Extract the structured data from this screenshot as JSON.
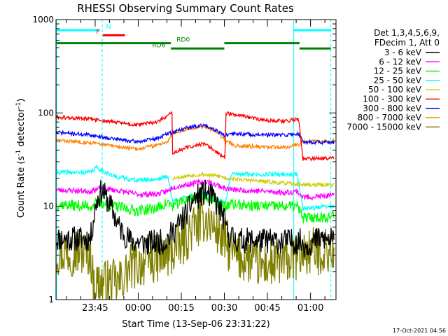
{
  "chart_data": {
    "type": "line",
    "title": "RHESSI Observing Summary Count Rates",
    "xlabel": "Start Time (13-Sep-06 23:31:22)",
    "ylabel_main": "Count Rate (s",
    "ylabel_sup1": "-1",
    "ylabel_mid": " detector",
    "ylabel_sup2": "-1",
    "ylabel_end": ")",
    "yscale": "log",
    "ylim": [
      1,
      1000
    ],
    "xlim_minutes": [
      0,
      97.5
    ],
    "x_tick_labels": [
      {
        "label": "23:45",
        "minute": 13.63
      },
      {
        "label": "00:00",
        "minute": 28.63
      },
      {
        "label": "00:15",
        "minute": 43.63
      },
      {
        "label": "00:30",
        "minute": 58.63
      },
      {
        "label": "00:45",
        "minute": 73.63
      },
      {
        "label": "01:00",
        "minute": 88.63
      }
    ],
    "y_tick_labels": [
      {
        "label": "1",
        "value": 1
      },
      {
        "label": "10",
        "value": 10
      },
      {
        "label": "100",
        "value": 100
      },
      {
        "label": "1000",
        "value": 1000
      }
    ],
    "legend_header": [
      "Det 1,3,4,5,6,9,",
      "FDecim 1, Att 0"
    ],
    "legend_placement": "right",
    "series": [
      {
        "name": "3 - 6 keV",
        "color": "#000000",
        "seed": 11,
        "noise": 0.14,
        "points": [
          [
            0,
            4.5
          ],
          [
            12,
            4.5
          ],
          [
            14,
            11
          ],
          [
            16,
            15
          ],
          [
            19,
            10
          ],
          [
            22,
            6
          ],
          [
            26,
            4.2
          ],
          [
            32,
            4.0
          ],
          [
            38,
            4.2
          ],
          [
            40,
            5
          ],
          [
            42,
            6
          ],
          [
            45,
            8
          ],
          [
            48,
            12
          ],
          [
            52,
            14
          ],
          [
            55,
            12
          ],
          [
            58,
            8
          ],
          [
            60,
            5
          ],
          [
            63,
            4.3
          ],
          [
            70,
            4.3
          ],
          [
            80,
            4.2
          ],
          [
            85,
            4.2
          ],
          [
            87,
            3.8
          ],
          [
            92,
            4.5
          ],
          [
            97,
            4.3
          ]
        ]
      },
      {
        "name": "6 - 12 keV",
        "color": "#ff00ff",
        "seed": 23,
        "noise": 0.03,
        "points": [
          [
            0,
            15
          ],
          [
            12,
            14.5
          ],
          [
            15,
            15.5
          ],
          [
            20,
            15
          ],
          [
            28,
            13.5
          ],
          [
            35,
            13.5
          ],
          [
            39,
            14.5
          ],
          [
            40.5,
            16
          ],
          [
            45,
            17
          ],
          [
            52,
            18.5
          ],
          [
            57,
            16.5
          ],
          [
            59,
            15.5
          ],
          [
            62,
            15
          ],
          [
            72,
            14.5
          ],
          [
            80,
            14
          ],
          [
            84,
            14.5
          ],
          [
            86,
            12.5
          ],
          [
            97,
            13
          ]
        ]
      },
      {
        "name": "12 - 25 keV",
        "color": "#00ff00",
        "seed": 37,
        "noise": 0.06,
        "points": [
          [
            0,
            10.5
          ],
          [
            12,
            10
          ],
          [
            15,
            11
          ],
          [
            20,
            10
          ],
          [
            28,
            9
          ],
          [
            35,
            9.5
          ],
          [
            39,
            11
          ],
          [
            40.5,
            10
          ],
          [
            46,
            12
          ],
          [
            51,
            13.5
          ],
          [
            56,
            11
          ],
          [
            59,
            10
          ],
          [
            61,
            10.5
          ],
          [
            72,
            10
          ],
          [
            84,
            10
          ],
          [
            86,
            7.5
          ],
          [
            97,
            7.8
          ]
        ]
      },
      {
        "name": "25 - 50 keV",
        "color": "#00ffff",
        "seed": 41,
        "noise": 0.025,
        "points": [
          [
            0,
            23
          ],
          [
            12,
            23
          ],
          [
            14,
            26
          ],
          [
            20,
            21
          ],
          [
            28,
            19
          ],
          [
            35,
            19.5
          ],
          [
            39,
            21
          ],
          [
            40.5,
            11.5
          ],
          [
            46,
            12.5
          ],
          [
            52,
            14
          ],
          [
            57,
            11.5
          ],
          [
            59,
            11
          ],
          [
            61,
            22
          ],
          [
            72,
            22
          ],
          [
            84,
            22
          ],
          [
            86,
            9.5
          ],
          [
            97,
            10
          ]
        ]
      },
      {
        "name": "50 - 100 keV",
        "color": "#cccc00",
        "seed": 53,
        "noise": 0.02,
        "points": [
          [
            40.5,
            20
          ],
          [
            45,
            21
          ],
          [
            51,
            22
          ],
          [
            57,
            21
          ],
          [
            59,
            20
          ],
          [
            86,
            17
          ],
          [
            97,
            17
          ]
        ]
      },
      {
        "name": "100 - 300 keV",
        "color": "#ff0000",
        "seed": 61,
        "noise": 0.02,
        "points": [
          [
            0,
            90
          ],
          [
            12,
            86
          ],
          [
            20,
            80
          ],
          [
            28,
            74
          ],
          [
            35,
            80
          ],
          [
            39,
            92
          ],
          [
            40.4,
            102
          ],
          [
            40.6,
            37
          ],
          [
            46,
            43
          ],
          [
            52,
            47
          ],
          [
            56,
            38
          ],
          [
            58.9,
            33
          ],
          [
            59.1,
            100
          ],
          [
            65,
            92
          ],
          [
            72,
            84
          ],
          [
            80,
            82
          ],
          [
            84.5,
            86
          ],
          [
            86,
            32
          ],
          [
            97,
            33
          ]
        ]
      },
      {
        "name": "300 - 800 keV",
        "color": "#0000ff",
        "seed": 71,
        "noise": 0.02,
        "points": [
          [
            0,
            62
          ],
          [
            12,
            58
          ],
          [
            20,
            53
          ],
          [
            28,
            49
          ],
          [
            35,
            53
          ],
          [
            39,
            60
          ],
          [
            40.5,
            62
          ],
          [
            46,
            70
          ],
          [
            52,
            74
          ],
          [
            56,
            65
          ],
          [
            59,
            57
          ],
          [
            62,
            60
          ],
          [
            72,
            58
          ],
          [
            80,
            58
          ],
          [
            84.5,
            60
          ],
          [
            86,
            49
          ],
          [
            97,
            48
          ]
        ]
      },
      {
        "name": "800 - 7000 keV",
        "color": "#ff8000",
        "seed": 83,
        "noise": 0.02,
        "points": [
          [
            0,
            51
          ],
          [
            12,
            48
          ],
          [
            20,
            44
          ],
          [
            28,
            41
          ],
          [
            35,
            45
          ],
          [
            39,
            50
          ],
          [
            40.5,
            60
          ],
          [
            46,
            68
          ],
          [
            52,
            72
          ],
          [
            56,
            63
          ],
          [
            59,
            51
          ],
          [
            62,
            45
          ],
          [
            72,
            43
          ],
          [
            80,
            43
          ],
          [
            84.5,
            46
          ],
          [
            86,
            49
          ],
          [
            97,
            50
          ]
        ]
      },
      {
        "name": "7000 - 15000 keV",
        "color": "#808000",
        "seed": 97,
        "noise": 0.26,
        "points": [
          [
            0,
            3.2
          ],
          [
            12,
            3.2
          ],
          [
            13,
            1.5
          ],
          [
            22,
            1.5
          ],
          [
            26,
            2.2
          ],
          [
            32,
            2.6
          ],
          [
            38,
            2.8
          ],
          [
            41,
            3.3
          ],
          [
            44,
            4
          ],
          [
            48,
            6
          ],
          [
            52,
            7.5
          ],
          [
            56,
            5.5
          ],
          [
            59,
            4
          ],
          [
            62,
            3
          ],
          [
            72,
            2.3
          ],
          [
            80,
            2.5
          ],
          [
            85,
            3
          ],
          [
            88,
            3.3
          ],
          [
            97,
            3.3
          ]
        ]
      }
    ],
    "cyan_vlines_solid": [
      0.2,
      82.8
    ],
    "cyan_vlines_dashed": [
      16.1,
      95.7
    ],
    "annotations": [
      {
        "label": "N",
        "color": "#00ffff",
        "segments": [
          [
            0.2,
            15.3
          ],
          [
            82.8,
            95.7
          ]
        ],
        "y": 770,
        "label_min": 17.5
      },
      {
        "label": "F",
        "color": "#ff0000",
        "segments": [
          [
            16.3,
            24
          ]
        ],
        "y": 680,
        "label_min": 14
      },
      {
        "label": "RD0",
        "color": "#008000",
        "segments": [
          [
            0.2,
            40
          ],
          [
            58.6,
            84.8
          ]
        ],
        "y": 560,
        "label_min": 42
      },
      {
        "label": "RD6",
        "color": "#008000",
        "segments": [
          [
            40,
            58.6
          ],
          [
            84.8,
            95.7
          ]
        ],
        "y": 490,
        "label_min": 33.5
      }
    ]
  },
  "footer_timestamp": "17-Oct-2021 04:56"
}
